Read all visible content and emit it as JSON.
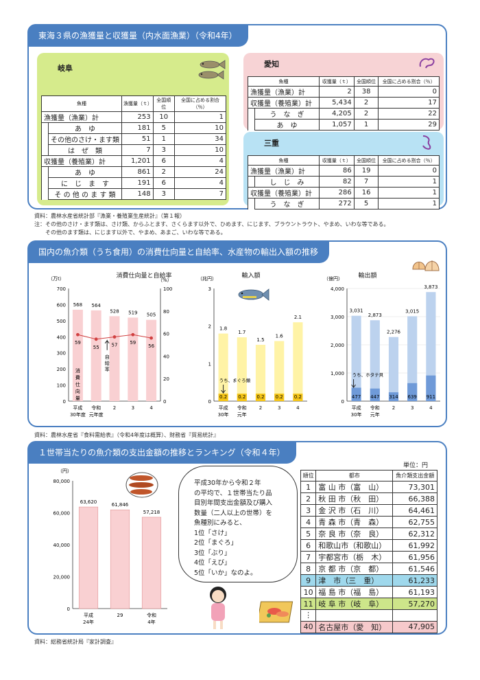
{
  "sec1": {
    "title": "東海３県の漁獲量と収獲量（内水面漁業）（令和4年）",
    "gifu": {
      "name": "岐阜",
      "headers": [
        "魚種",
        "漁獲量（ｔ）",
        "全国順位",
        "全国に占める割合（％）"
      ],
      "rows": [
        {
          "label": "漁獲量（漁業）計",
          "qty": "253",
          "rank": "10",
          "pct": "1"
        },
        {
          "label": "あ　ゆ",
          "qty": "181",
          "rank": "5",
          "pct": "10"
        },
        {
          "label": "その他のさけ・ます類",
          "qty": "51",
          "rank": "1",
          "pct": "34"
        },
        {
          "label": "は　ぜ　類",
          "qty": "7",
          "rank": "3",
          "pct": "10"
        },
        {
          "label": "収獲量（養殖業）計",
          "qty": "1,201",
          "rank": "6",
          "pct": "4"
        },
        {
          "label": "あ　ゆ",
          "qty": "861",
          "rank": "2",
          "pct": "24"
        },
        {
          "label": "に　じ　ま　す",
          "qty": "191",
          "rank": "6",
          "pct": "4"
        },
        {
          "label": "そ の 他 の ま す 類",
          "qty": "148",
          "rank": "3",
          "pct": "7"
        }
      ]
    },
    "aichi": {
      "name": "愛知",
      "headers": [
        "魚種",
        "収獲量（ｔ）",
        "全国順位",
        "全国に占める割合（％）"
      ],
      "rows": [
        {
          "label": "漁獲量（漁業）計",
          "qty": "2",
          "rank": "38",
          "pct": "0"
        },
        {
          "label": "収獲量（養殖業）計",
          "qty": "5,434",
          "rank": "2",
          "pct": "17"
        },
        {
          "label": "う　な　ぎ",
          "qty": "4,205",
          "rank": "2",
          "pct": "22"
        },
        {
          "label": "あ　ゆ",
          "qty": "1,057",
          "rank": "1",
          "pct": "29"
        }
      ]
    },
    "mie": {
      "name": "三重",
      "headers": [
        "魚種",
        "収獲量（ｔ）",
        "全国順位",
        "全国に占める割合（％）"
      ],
      "rows": [
        {
          "label": "漁獲量（漁業）計",
          "qty": "86",
          "rank": "19",
          "pct": "0"
        },
        {
          "label": "し　じ　み",
          "qty": "82",
          "rank": "7",
          "pct": "1"
        },
        {
          "label": "収獲量（養殖業）計",
          "qty": "286",
          "rank": "16",
          "pct": "1"
        },
        {
          "label": "う　な　ぎ",
          "qty": "272",
          "rank": "5",
          "pct": "1"
        }
      ]
    },
    "source": "資料：農林水産省統計部『漁業・養殖業生産統計』（第１報）",
    "note1": "注：その他のさけ・ます類は、さけ類、からふとます、さくらます以外で、ひめます、にじます、ブラウントラウト、やまめ、いわな等である。",
    "note2": "その他のます類は、にじます以外で、やまめ、あまご、いわな等である。"
  },
  "sec2": {
    "title": "国内の魚介類（うち食用）の消費仕向量と自給率、水産物の輸出入額の推移",
    "source": "資料：農林水産省『食料需給表』（令和4年度は概算）、財務省『貿易統計』"
  },
  "sec3": {
    "title": "１世帯当たりの魚介類の支出金額の推移とランキング（令和４年）",
    "unit": "単位：円",
    "speech": [
      "平成30年から令和２年",
      "の平均で、１世帯当たり品",
      "目別年間支出金額及び購入",
      "数量（二人以上の世帯）を",
      "魚種別にみると、",
      "1位「さけ」",
      "2位「まぐろ」",
      "3位「ぶり」",
      "4位「えび」",
      "5位「いか」なのよ。"
    ],
    "rank_headers": [
      "順位",
      "都市",
      "魚介類支出金額"
    ],
    "ranking": [
      {
        "rank": "1",
        "city": "富 山 市（富　山）",
        "amount": "73,301"
      },
      {
        "rank": "2",
        "city": "秋 田 市（秋　田）",
        "amount": "66,388"
      },
      {
        "rank": "3",
        "city": "金 沢 市（石　川）",
        "amount": "64,461"
      },
      {
        "rank": "4",
        "city": "青 森 市（青　森）",
        "amount": "62,755"
      },
      {
        "rank": "5",
        "city": "奈 良 市（奈　良）",
        "amount": "62,312"
      },
      {
        "rank": "6",
        "city": "和歌山市（和歌山）",
        "amount": "61,992"
      },
      {
        "rank": "7",
        "city": "宇都宮市（栃　木）",
        "amount": "61,956"
      },
      {
        "rank": "8",
        "city": "京 都 市（京　都）",
        "amount": "61,546"
      },
      {
        "rank": "9",
        "city": "津　市（三　重）",
        "amount": "61,233"
      },
      {
        "rank": "10",
        "city": "福 島 市（福　島）",
        "amount": "61,193"
      },
      {
        "rank": "11",
        "city": "岐 阜 市（岐　阜）",
        "amount": "57,270"
      },
      {
        "rank": "⋮",
        "city": "",
        "amount": ""
      },
      {
        "rank": "40",
        "city": "名古屋市（愛　知）",
        "amount": "47,905"
      }
    ],
    "source": "資料：総務省統計局『家計調査』"
  },
  "chart_data": [
    {
      "type": "bar",
      "title": "消費仕向量と自給率",
      "yunit": "（万t）",
      "y2unit": "（%）",
      "categories": [
        "平成30年度",
        "令和元年度",
        "2",
        "3",
        "4"
      ],
      "category_lines": [
        [
          "平成",
          "30年度"
        ],
        [
          "令和",
          "元年度"
        ],
        [
          "2",
          ""
        ],
        [
          "3",
          ""
        ],
        [
          "4",
          ""
        ]
      ],
      "series": [
        {
          "name": "消費仕向量",
          "values": [
            568,
            564,
            528,
            519,
            505
          ]
        },
        {
          "name": "自給率",
          "type": "line",
          "values": [
            59,
            55,
            57,
            59,
            56
          ]
        }
      ],
      "ylim": [
        0,
        700
      ],
      "yticks": [
        0,
        100,
        200,
        300,
        400,
        500,
        600,
        700
      ],
      "y2lim": [
        0,
        100
      ],
      "y2ticks": [
        0,
        20,
        40,
        60,
        80,
        100
      ],
      "annotations": [
        "消費仕向量",
        "自給率"
      ],
      "colors": {
        "bar": "#f9d0d2",
        "line": "#d04040"
      }
    },
    {
      "type": "bar",
      "title": "輸入額",
      "yunit": "（兆円）",
      "categories": [
        "平成30年",
        "令和元年",
        "2",
        "3",
        "4"
      ],
      "category_lines": [
        [
          "平成",
          "30年"
        ],
        [
          "令和",
          "元年"
        ],
        [
          "2",
          ""
        ],
        [
          "3",
          ""
        ],
        [
          "4",
          ""
        ]
      ],
      "series": [
        {
          "name": "輸入額",
          "values": [
            1.8,
            1.7,
            1.5,
            1.6,
            2.1
          ]
        },
        {
          "name": "うち、まぐろ類",
          "values": [
            0.2,
            0.2,
            0.2,
            0.2,
            0.2
          ]
        }
      ],
      "ylim": [
        0,
        3
      ],
      "yticks": [
        0,
        1,
        2,
        3
      ],
      "annotations": [
        "うち、まぐろ類"
      ],
      "colors": {
        "total": "#fff3a6",
        "part": "#f5c518"
      }
    },
    {
      "type": "bar",
      "title": "輸出額",
      "yunit": "（億円）",
      "categories": [
        "平成30年",
        "令和元年",
        "2",
        "3",
        "4"
      ],
      "category_lines": [
        [
          "平成",
          "30年"
        ],
        [
          "令和",
          "元年"
        ],
        [
          "2",
          ""
        ],
        [
          "3",
          ""
        ],
        [
          "4",
          ""
        ]
      ],
      "series": [
        {
          "name": "輸出額",
          "values": [
            3031,
            2873,
            2276,
            3015,
            3873
          ]
        },
        {
          "name": "うち、ホタテ貝",
          "values": [
            477,
            447,
            314,
            639,
            911
          ]
        }
      ],
      "ylim": [
        0,
        4000
      ],
      "yticks": [
        0,
        1000,
        2000,
        3000,
        4000
      ],
      "annotations": [
        "うち、ホタテ貝"
      ],
      "colors": {
        "total": "#bcd2ee",
        "part": "#6f9ad8"
      }
    },
    {
      "type": "bar",
      "title": "1世帯当たりの魚介類の支出金額",
      "yunit": "（円）",
      "categories": [
        "平成24年",
        "29",
        "令和4年"
      ],
      "category_lines": [
        [
          "平成",
          "24年"
        ],
        [
          "29",
          ""
        ],
        [
          "令和",
          "4年"
        ]
      ],
      "series": [
        {
          "name": "支出金額",
          "values": [
            63620,
            61846,
            57218
          ]
        }
      ],
      "ylim": [
        0,
        80000
      ],
      "yticks": [
        0,
        20000,
        40000,
        60000,
        80000
      ],
      "colors": {
        "bar": "#f9d0d2"
      }
    }
  ]
}
